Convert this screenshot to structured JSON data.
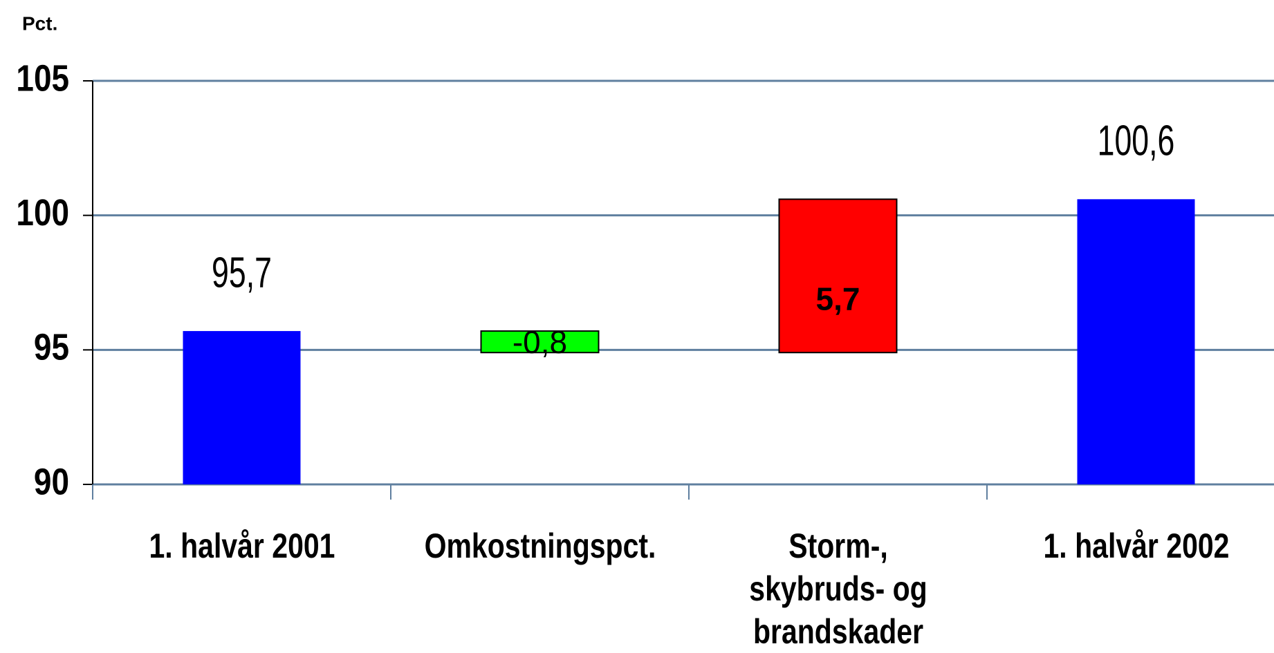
{
  "chart_data": {
    "type": "waterfall",
    "y_label": "Pct.",
    "categories": [
      "1. halvår 2001",
      "Omkostningspct.",
      "Storm-, skybruds- og brandskader",
      "1. halvår 2002"
    ],
    "values": [
      95.7,
      -0.8,
      5.7,
      100.6
    ],
    "value_labels": [
      "95,7",
      "-0,8",
      "5,7",
      "100,6"
    ],
    "measure": [
      "absolute",
      "relative",
      "relative",
      "total"
    ],
    "colors": [
      "#0000ff",
      "#00ff00",
      "#ff0000",
      "#0000ff"
    ],
    "ylim": [
      90,
      105
    ],
    "yticks": [
      90,
      95,
      100,
      105
    ],
    "grid": true
  }
}
